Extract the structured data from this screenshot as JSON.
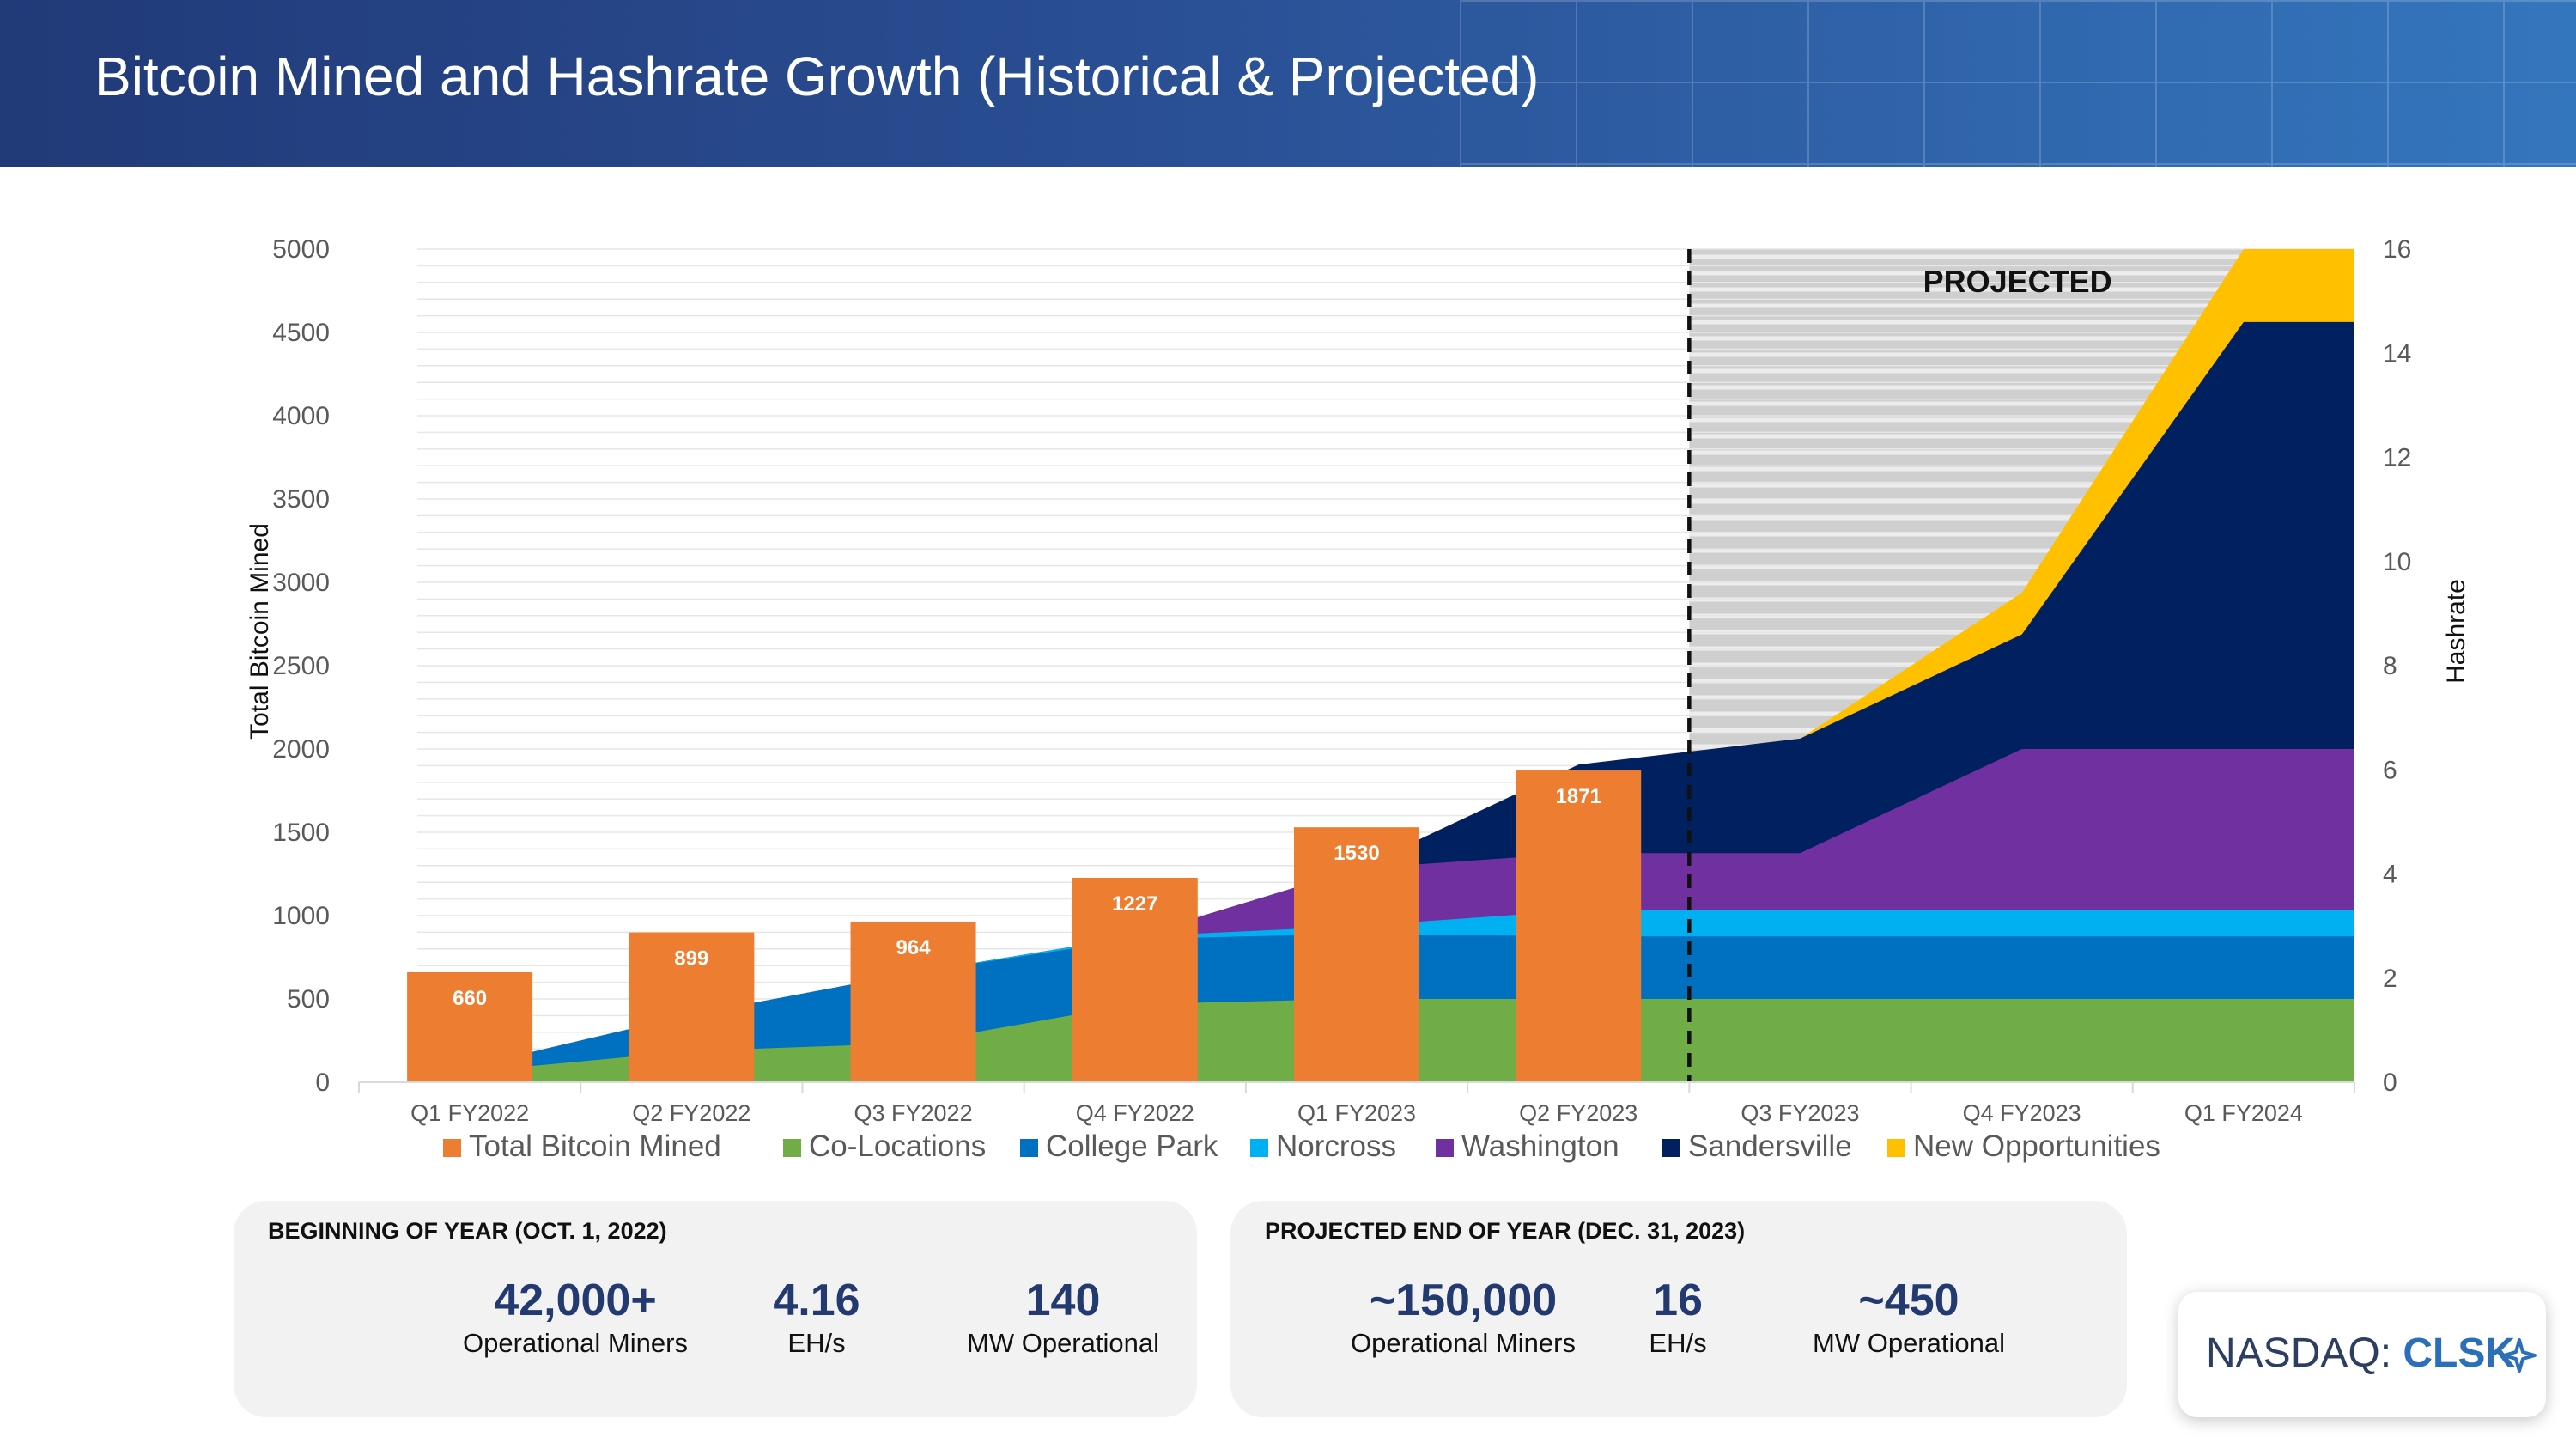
{
  "title": "Bitcoin Mined and Hashrate Growth (Historical & Projected)",
  "colors": {
    "total_bitcoin_mined": "#ed7d31",
    "co_locations": "#70ad47",
    "college_park": "#0070c0",
    "norcross": "#00b0f0",
    "washington": "#7030a0",
    "sandersville": "#002060",
    "new_opportunities": "#ffc000",
    "projected_band": "#d0cfcf",
    "header_start": "#213a78",
    "header_end": "#3476bd",
    "stat_value": "#223a70"
  },
  "chart_data": {
    "type": "bar",
    "categories": [
      "Q1 FY2022",
      "Q2 FY2022",
      "Q3 FY2022",
      "Q4 FY2022",
      "Q1 FY2023",
      "Q2 FY2023",
      "Q3 FY2023",
      "Q4 FY2023",
      "Q1 FY2024"
    ],
    "ylabel": "Total Bitcoin Mined",
    "y2label": "Hashrate",
    "ylim": [
      0,
      5000
    ],
    "y2lim": [
      0,
      16
    ],
    "yticks": [
      "0",
      "500",
      "1000",
      "1500",
      "2000",
      "2500",
      "3000",
      "3500",
      "4000",
      "4500",
      "5000"
    ],
    "y2ticks": [
      "0",
      "2",
      "4",
      "6",
      "8",
      "10",
      "12",
      "14",
      "16"
    ],
    "grid": true,
    "legend_position": "bottom",
    "projected_label": "PROJECTED",
    "projected_from_category": "Q3 FY2023",
    "bar_series": {
      "name": "Total Bitcoin Mined",
      "categories": [
        "Q1 FY2022",
        "Q2 FY2022",
        "Q3 FY2022",
        "Q4 FY2022",
        "Q1 FY2023",
        "Q2 FY2023"
      ],
      "values": [
        660,
        899,
        964,
        1227,
        1530,
        1871
      ],
      "labels": [
        "660",
        "899",
        "964",
        "1227",
        "1530",
        "1871"
      ]
    },
    "area_series": [
      {
        "name": "Co-Locations",
        "stack": "cumulative hashrate (EH/s)",
        "x": [
          "Q1 FY2022",
          "Q2 FY2022",
          "Q3 FY2022",
          "Q4 FY2022",
          "Q1 FY2023",
          "Q2 FY2023",
          "Q3 FY2023",
          "Q4 FY2023",
          "Q1 FY2024"
        ],
        "values": [
          0.2,
          0.6,
          0.75,
          1.5,
          1.6,
          1.6,
          1.6,
          1.6,
          1.6
        ]
      },
      {
        "name": "College Park",
        "x": [
          "Q1 FY2022",
          "Q2 FY2022",
          "Q3 FY2022",
          "Q4 FY2022",
          "Q1 FY2023",
          "Q2 FY2023",
          "Q3 FY2023",
          "Q4 FY2023",
          "Q1 FY2024"
        ],
        "values": [
          0.3,
          1.3,
          2.1,
          2.75,
          2.85,
          2.8,
          2.8,
          2.8,
          2.8
        ]
      },
      {
        "name": "Norcross",
        "x": [
          "Q1 FY2022",
          "Q2 FY2022",
          "Q3 FY2022",
          "Q4 FY2022",
          "Q1 FY2023",
          "Q2 FY2023",
          "Q3 FY2023",
          "Q4 FY2023",
          "Q1 FY2024"
        ],
        "values": [
          0.3,
          1.3,
          2.1,
          2.8,
          3.0,
          3.3,
          3.3,
          3.3,
          3.3
        ]
      },
      {
        "name": "Washington",
        "x": [
          "Q1 FY2022",
          "Q2 FY2022",
          "Q3 FY2022",
          "Q4 FY2022",
          "Q1 FY2023",
          "Q2 FY2023",
          "Q3 FY2023",
          "Q4 FY2023",
          "Q1 FY2024"
        ],
        "values": [
          0.3,
          1.3,
          2.1,
          2.8,
          4.1,
          4.4,
          4.4,
          6.4,
          6.4
        ]
      },
      {
        "name": "Sandersville",
        "x": [
          "Q1 FY2022",
          "Q2 FY2022",
          "Q3 FY2022",
          "Q4 FY2022",
          "Q1 FY2023",
          "Q2 FY2023",
          "Q3 FY2023",
          "Q4 FY2023",
          "Q1 FY2024"
        ],
        "values": [
          0.3,
          1.3,
          2.1,
          2.8,
          4.1,
          6.1,
          6.6,
          8.6,
          14.6
        ]
      },
      {
        "name": "New Opportunities",
        "x": [
          "Q1 FY2022",
          "Q2 FY2022",
          "Q3 FY2022",
          "Q4 FY2022",
          "Q1 FY2023",
          "Q2 FY2023",
          "Q3 FY2023",
          "Q4 FY2023",
          "Q1 FY2024"
        ],
        "values": [
          0.3,
          1.3,
          2.1,
          2.8,
          4.1,
          6.1,
          6.6,
          9.4,
          16.0
        ]
      }
    ],
    "legend": [
      "Total Bitcoin Mined",
      "Co-Locations",
      "College Park",
      "Norcross",
      "Washington",
      "Sandersville",
      "New Opportunities"
    ]
  },
  "cards": [
    {
      "title": "BEGINNING OF YEAR (OCT. 1, 2022)",
      "stats": [
        {
          "value": "42,000+",
          "label": "Operational Miners"
        },
        {
          "value": "4.16",
          "label": "EH/s"
        },
        {
          "value": "140",
          "label": "MW Operational"
        }
      ]
    },
    {
      "title": "PROJECTED END OF YEAR (DEC. 31, 2023)",
      "stats": [
        {
          "value": "~150,000",
          "label": "Operational Miners"
        },
        {
          "value": "16",
          "label": "EH/s"
        },
        {
          "value": "~450",
          "label": "MW Operational"
        }
      ]
    }
  ],
  "ticker": {
    "prefix": "NASDAQ: ",
    "symbol": "CLSK",
    "icon": "sparkle-icon"
  }
}
